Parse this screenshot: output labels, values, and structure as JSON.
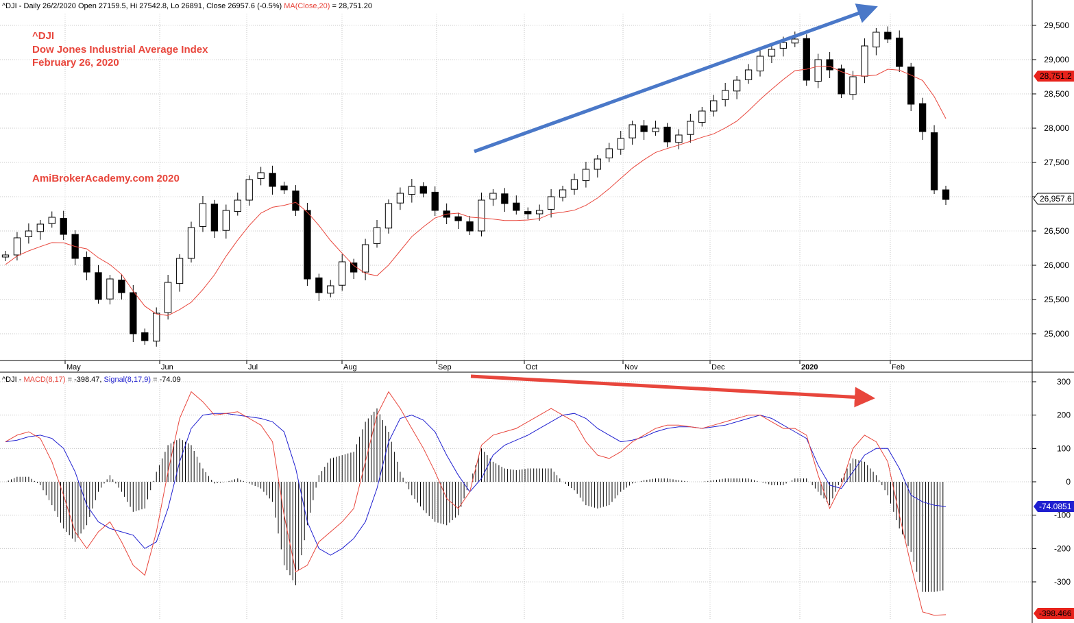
{
  "price_header": {
    "symbol": "^DJI",
    "info": " - Daily 26/2/2020 Open 27159.5, Hi 27542.8, Lo 26891, Close 26957.6 (-0.5%) ",
    "ma_label": "MA(Close,20)",
    "ma_value": " = 28,751.20"
  },
  "macd_header": {
    "symbol": "^DJI",
    "sep": " - ",
    "macd_label": "MACD(8,17)",
    "macd_value": " = -398.47, ",
    "signal_label": "Signal(8,17,9)",
    "signal_value": " = -74.09"
  },
  "annotations": {
    "symbol": "^DJI",
    "name": "Dow Jones Industrial Average Index",
    "date": "February 26, 2020",
    "watermark": "AmiBrokerAcademy.com  2020"
  },
  "value_tags": {
    "ma": "28,751.2",
    "close": "26,957.6",
    "signal": "-74.0851",
    "macd": "-398.466"
  },
  "colors": {
    "ma": "#e8463c",
    "macd": "#e8463c",
    "signal": "#1f1fd0",
    "arrow_up": "#4a78c8",
    "arrow_down": "#e8463c",
    "grid": "#c8c8c8",
    "candle": "#000000"
  },
  "chart_data": [
    {
      "type": "candlestick",
      "x_labels": [
        "May",
        "Jun",
        "Jul",
        "Aug",
        "Sep",
        "Oct",
        "Nov",
        "Dec",
        "2020",
        "Feb"
      ],
      "y_ticks": [
        "25,000",
        "25,500",
        "26,000",
        "26,500",
        "27,000",
        "27,500",
        "28,000",
        "28,500",
        "29,000",
        "29,500"
      ],
      "ylim": [
        24600,
        29850
      ],
      "grid": true,
      "close": [
        26150,
        26400,
        26500,
        26600,
        26700,
        26450,
        26100,
        25900,
        25500,
        25800,
        25600,
        25000,
        24900,
        25300,
        25750,
        26100,
        26550,
        26900,
        26500,
        26800,
        26950,
        27250,
        27350,
        27150,
        27100,
        26800,
        25800,
        25600,
        25700,
        26050,
        25900,
        26300,
        26550,
        26900,
        27050,
        27150,
        27050,
        26800,
        26700,
        26650,
        26500,
        26950,
        27050,
        26900,
        26800,
        26750,
        26800,
        27000,
        27100,
        27250,
        27400,
        27550,
        27700,
        27850,
        28050,
        27950,
        28000,
        27800,
        27900,
        28100,
        28250,
        28400,
        28550,
        28700,
        28850,
        29050,
        29150,
        29250,
        29300,
        28700,
        29000,
        28850,
        28500,
        28750,
        29200,
        29400,
        29300,
        28900,
        28350,
        27950,
        27100,
        26960
      ]
    },
    {
      "type": "line",
      "title": "MACD",
      "y_ticks": [
        "300",
        "200",
        "100",
        "0",
        "-100",
        "-200",
        "-300"
      ],
      "ylim": [
        -400,
        300
      ],
      "grid": true,
      "series": [
        {
          "name": "MACD(8,17)",
          "values": [
            120,
            140,
            150,
            130,
            60,
            -40,
            -150,
            -200,
            -150,
            -120,
            -180,
            -250,
            -280,
            -150,
            30,
            190,
            270,
            240,
            200,
            205,
            210,
            190,
            170,
            120,
            -100,
            -270,
            -250,
            -180,
            -150,
            -120,
            -80,
            60,
            200,
            270,
            220,
            160,
            100,
            30,
            -50,
            -80,
            -30,
            110,
            140,
            150,
            160,
            180,
            200,
            220,
            200,
            180,
            120,
            80,
            70,
            90,
            120,
            140,
            160,
            170,
            170,
            165,
            160,
            170,
            180,
            190,
            200,
            200,
            180,
            160,
            160,
            140,
            20,
            -80,
            -10,
            100,
            140,
            120,
            60,
            -100,
            -250,
            -390,
            -400,
            -398.47
          ]
        },
        {
          "name": "Signal(8,17,9)",
          "values": [
            120,
            125,
            135,
            140,
            130,
            100,
            30,
            -70,
            -120,
            -140,
            -150,
            -160,
            -200,
            -180,
            -80,
            60,
            160,
            200,
            205,
            205,
            200,
            195,
            190,
            180,
            150,
            40,
            -120,
            -200,
            -220,
            -200,
            -170,
            -120,
            -20,
            120,
            190,
            200,
            185,
            150,
            80,
            20,
            -30,
            10,
            80,
            110,
            125,
            140,
            160,
            180,
            200,
            205,
            190,
            160,
            140,
            120,
            125,
            135,
            150,
            160,
            165,
            165,
            160,
            165,
            170,
            180,
            190,
            200,
            190,
            170,
            150,
            130,
            50,
            -10,
            -20,
            30,
            80,
            100,
            100,
            40,
            -40,
            -60,
            -70,
            -74.09
          ]
        }
      ]
    }
  ]
}
